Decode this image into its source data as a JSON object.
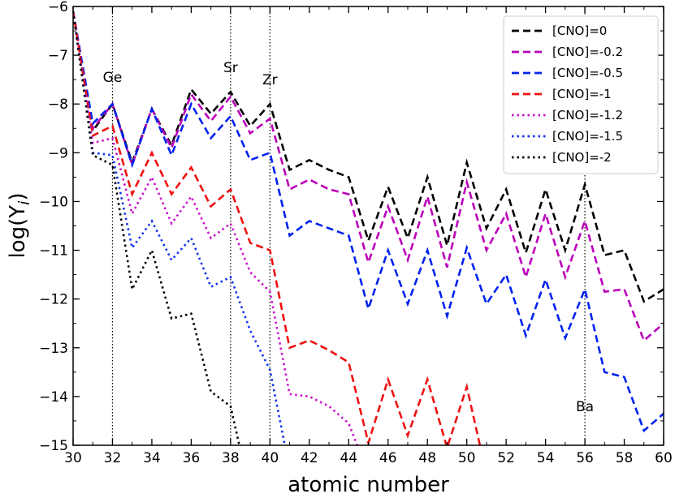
{
  "chart_data": {
    "type": "line",
    "title": "",
    "xlabel": "atomic number",
    "ylabel_main": "log(Y",
    "ylabel_sub": "i",
    "ylabel_close": ")",
    "xlim": [
      30,
      60
    ],
    "ylim": [
      -15,
      -6
    ],
    "xticks": [
      30,
      32,
      34,
      36,
      38,
      40,
      42,
      44,
      46,
      48,
      50,
      52,
      54,
      56,
      58,
      60
    ],
    "yticks": [
      -15,
      -14,
      -13,
      -12,
      -11,
      -10,
      -9,
      -8,
      -7,
      -6
    ],
    "grid": false,
    "legend_position": "top-right",
    "annotations": [
      {
        "label": "Ge",
        "x": 32,
        "y": -7.65
      },
      {
        "label": "Sr",
        "x": 38,
        "y": -7.45
      },
      {
        "label": "Zr",
        "x": 40,
        "y": -7.7
      },
      {
        "label": "Ba",
        "x": 56,
        "y": -14.4
      }
    ],
    "vlines": [
      32,
      38,
      40,
      56
    ],
    "x": [
      30,
      31,
      32,
      33,
      34,
      35,
      36,
      37,
      38,
      39,
      40,
      41,
      42,
      43,
      44,
      45,
      46,
      47,
      48,
      49,
      50,
      51,
      52,
      53,
      54,
      55,
      56,
      57,
      58,
      59,
      60
    ],
    "series": [
      {
        "name": "[CNO]=0",
        "color": "#000000",
        "dash": "dashed",
        "values": [
          -6.1,
          -8.55,
          -8.0,
          -9.2,
          -8.1,
          -8.85,
          -7.7,
          -8.2,
          -7.75,
          -8.45,
          -8.0,
          -9.35,
          -9.15,
          -9.35,
          -9.5,
          -10.8,
          -9.7,
          -10.75,
          -9.5,
          -10.9,
          -9.2,
          -10.55,
          -9.75,
          -11.05,
          -9.75,
          -11.0,
          -9.65,
          -11.1,
          -11.0,
          -12.05,
          -11.8
        ]
      },
      {
        "name": "[CNO]=-0.2",
        "color": "#bb00bb",
        "dash": "dashed",
        "values": [
          -6.1,
          -8.5,
          -8.0,
          -9.25,
          -8.1,
          -8.9,
          -7.8,
          -8.35,
          -7.85,
          -8.6,
          -8.3,
          -9.75,
          -9.55,
          -9.75,
          -9.85,
          -11.25,
          -10.1,
          -11.2,
          -9.9,
          -11.35,
          -9.6,
          -11.0,
          -10.25,
          -11.55,
          -10.25,
          -11.55,
          -10.4,
          -11.85,
          -11.8,
          -12.85,
          -12.5
        ]
      },
      {
        "name": "[CNO]=-0.5",
        "color": "#0022ee",
        "dash": "dashed",
        "values": [
          -6.1,
          -8.4,
          -8.0,
          -9.25,
          -8.1,
          -9.05,
          -8.0,
          -8.7,
          -8.25,
          -9.15,
          -9.0,
          -10.7,
          -10.4,
          -10.55,
          -10.7,
          -12.2,
          -11.0,
          -12.1,
          -11.0,
          -12.35,
          -10.95,
          -12.1,
          -11.5,
          -12.75,
          -11.6,
          -12.8,
          -11.8,
          -13.5,
          -13.6,
          -14.7,
          -14.35
        ]
      },
      {
        "name": "[CNO]=-1",
        "color": "#ee1111",
        "dash": "dashed",
        "values": [
          -6.1,
          -8.65,
          -8.45,
          -9.85,
          -9.0,
          -9.85,
          -9.3,
          -10.1,
          -9.75,
          -10.85,
          -11.0,
          -13.0,
          -12.85,
          -13.05,
          -13.3,
          -14.95,
          -13.65,
          -14.8,
          -13.65,
          -15.05,
          -13.8,
          -15.6,
          null,
          null,
          null,
          null,
          null,
          null,
          null,
          null,
          null
        ]
      },
      {
        "name": "[CNO]=-1.2",
        "color": "#cc11cc",
        "dash": "dotted",
        "values": [
          -6.1,
          -8.8,
          -8.7,
          -10.25,
          -9.5,
          -10.45,
          -9.9,
          -10.75,
          -10.45,
          -11.45,
          -11.85,
          -13.95,
          -14.0,
          -14.2,
          -14.55,
          -15.6,
          null,
          null,
          null,
          null,
          null,
          null,
          null,
          null,
          null,
          null,
          null,
          null,
          null,
          null,
          null
        ]
      },
      {
        "name": "[CNO]=-1.5",
        "color": "#1133ee",
        "dash": "dotted",
        "values": [
          -6.1,
          -9.0,
          -9.05,
          -10.95,
          -10.4,
          -11.2,
          -10.75,
          -11.75,
          -11.55,
          -12.65,
          -13.45,
          -15.5,
          null,
          null,
          null,
          null,
          null,
          null,
          null,
          null,
          null,
          null,
          null,
          null,
          null,
          null,
          null,
          null,
          null,
          null,
          null
        ]
      },
      {
        "name": "[CNO]=-2",
        "color": "#000000",
        "dash": "dotted",
        "values": [
          -6.1,
          -9.05,
          -9.25,
          -11.8,
          -11.0,
          -12.4,
          -12.3,
          -13.9,
          -14.2,
          -16.0,
          null,
          null,
          null,
          null,
          null,
          null,
          null,
          null,
          null,
          null,
          null,
          null,
          null,
          null,
          null,
          null,
          null,
          null,
          null,
          null,
          null
        ]
      }
    ]
  }
}
